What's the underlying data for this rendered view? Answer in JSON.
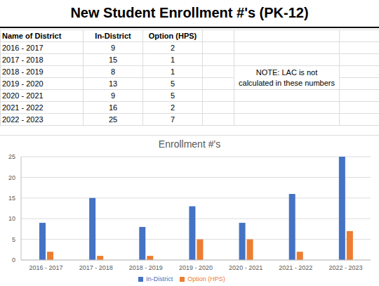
{
  "title": "New Student Enrollment #'s (PK-12)",
  "table": {
    "columns": [
      "Name of District",
      "In-District",
      "Option (HPS)"
    ],
    "rows": [
      [
        "2016 - 2017",
        9,
        2
      ],
      [
        "2017 - 2018",
        15,
        1
      ],
      [
        "2018 - 2019",
        8,
        1
      ],
      [
        "2019 - 2020",
        13,
        5
      ],
      [
        "2020 - 2021",
        9,
        5
      ],
      [
        "2021 - 2022",
        16,
        2
      ],
      [
        "2022 - 2023",
        25,
        7
      ]
    ]
  },
  "note": "NOTE:  LAC is not calculated in these numbers",
  "chart_data": {
    "type": "bar",
    "title": "Enrollment #'s",
    "categories": [
      "2016 - 2017",
      "2017 - 2018",
      "2018 - 2019",
      "2019 - 2020",
      "2020 - 2021",
      "2021 - 2022",
      "2022 - 2023"
    ],
    "series": [
      {
        "name": "In-District",
        "color": "#4472c4",
        "values": [
          9,
          15,
          8,
          13,
          9,
          16,
          25
        ]
      },
      {
        "name": "Option (HPS)",
        "color": "#ed7d31",
        "values": [
          2,
          1,
          1,
          5,
          5,
          2,
          7
        ]
      }
    ],
    "ylim": [
      0,
      25
    ],
    "yticks": [
      0,
      5,
      10,
      15,
      20,
      25
    ],
    "grid": true,
    "legend": "bottom"
  }
}
